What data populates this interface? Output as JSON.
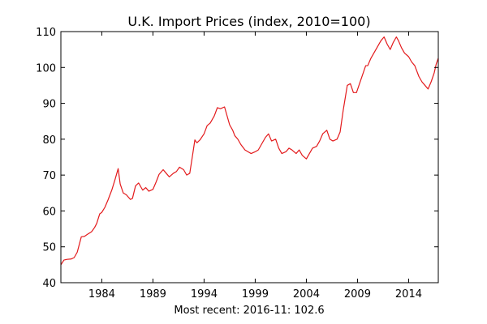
{
  "chart_data": {
    "type": "line",
    "title": "U.K. Import Prices (index, 2010=100)",
    "xlabel": "Most recent: 2016-11: 102.6",
    "ylabel": "",
    "xlim": [
      1980.0,
      2016.9
    ],
    "ylim": [
      40,
      110
    ],
    "x_ticks": [
      1984,
      1989,
      1994,
      1999,
      2004,
      2009,
      2014
    ],
    "y_ticks": [
      40,
      50,
      60,
      70,
      80,
      90,
      100,
      110
    ],
    "grid": false,
    "legend": "none",
    "series": [
      {
        "color": "#e31a1c",
        "x": [
          1980.0,
          1980.3,
          1980.6,
          1981.0,
          1981.3,
          1981.6,
          1982.0,
          1982.3,
          1982.6,
          1983.0,
          1983.3,
          1983.5,
          1983.8,
          1984.0,
          1984.3,
          1984.6,
          1985.0,
          1985.3,
          1985.6,
          1985.8,
          1986.1,
          1986.4,
          1986.8,
          1987.0,
          1987.3,
          1987.6,
          1988.0,
          1988.3,
          1988.6,
          1989.0,
          1989.3,
          1989.6,
          1990.0,
          1990.3,
          1990.6,
          1991.0,
          1991.3,
          1991.6,
          1992.0,
          1992.3,
          1992.6,
          1992.9,
          1993.1,
          1993.3,
          1993.6,
          1994.0,
          1994.3,
          1994.6,
          1995.0,
          1995.3,
          1995.6,
          1996.0,
          1996.2,
          1996.5,
          1996.8,
          1997.0,
          1997.3,
          1997.6,
          1998.0,
          1998.3,
          1998.6,
          1999.0,
          1999.3,
          1999.6,
          2000.0,
          2000.3,
          2000.6,
          2001.0,
          2001.3,
          2001.6,
          2002.0,
          2002.3,
          2002.6,
          2003.0,
          2003.3,
          2003.6,
          2004.0,
          2004.3,
          2004.6,
          2005.0,
          2005.3,
          2005.6,
          2006.0,
          2006.3,
          2006.6,
          2007.0,
          2007.3,
          2007.6,
          2008.0,
          2008.3,
          2008.6,
          2008.9,
          2009.2,
          2009.5,
          2009.8,
          2010.0,
          2010.3,
          2010.6,
          2011.0,
          2011.3,
          2011.6,
          2011.9,
          2012.2,
          2012.5,
          2012.8,
          2013.0,
          2013.3,
          2013.6,
          2014.0,
          2014.3,
          2014.6,
          2015.0,
          2015.3,
          2015.6,
          2015.9,
          2016.2,
          2016.5,
          2016.7,
          2016.9
        ],
        "y": [
          45.0,
          46.3,
          46.5,
          46.6,
          47.0,
          48.5,
          52.8,
          52.9,
          53.5,
          54.2,
          55.4,
          56.5,
          59.2,
          59.6,
          61.0,
          63.0,
          66.0,
          68.8,
          71.8,
          67.5,
          65.0,
          64.5,
          63.2,
          63.5,
          67.0,
          67.8,
          65.8,
          66.5,
          65.5,
          66.0,
          68.0,
          70.2,
          71.5,
          70.5,
          69.5,
          70.5,
          71.0,
          72.2,
          71.5,
          70.0,
          70.5,
          76.0,
          79.8,
          79.0,
          79.8,
          81.5,
          83.8,
          84.5,
          86.5,
          88.8,
          88.5,
          89.0,
          87.0,
          84.0,
          82.5,
          81.0,
          80.0,
          78.5,
          77.0,
          76.5,
          76.0,
          76.5,
          77.0,
          78.5,
          80.5,
          81.5,
          79.5,
          80.0,
          77.5,
          76.0,
          76.5,
          77.5,
          77.0,
          76.0,
          77.0,
          75.5,
          74.5,
          76.0,
          77.5,
          78.0,
          79.5,
          81.5,
          82.5,
          80.0,
          79.5,
          80.0,
          82.0,
          88.0,
          95.0,
          95.5,
          93.0,
          93.0,
          95.5,
          98.0,
          100.5,
          100.5,
          102.5,
          104.0,
          106.0,
          107.5,
          108.5,
          106.5,
          105.0,
          107.0,
          108.5,
          107.5,
          105.5,
          104.0,
          103.0,
          101.5,
          100.5,
          97.5,
          96.0,
          95.0,
          94.0,
          96.0,
          98.5,
          101.0,
          102.6
        ]
      }
    ]
  }
}
